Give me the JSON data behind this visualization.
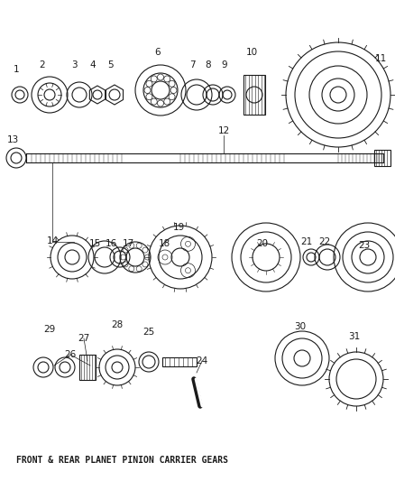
{
  "title": "FRONT & REAR PLANET PINION CARRIER GEARS",
  "bg_color": "#ffffff",
  "line_color": "#1a1a1a",
  "footnote": "FRONT & REAR PLANET PINION CARRIER GEARS"
}
